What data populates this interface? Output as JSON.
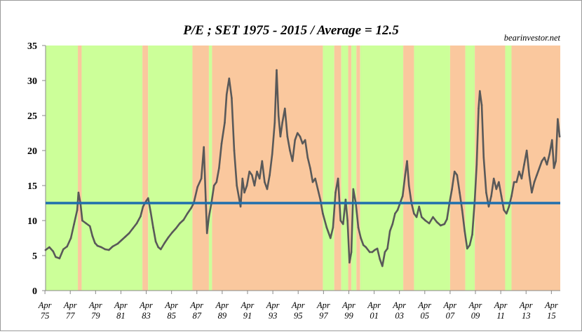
{
  "chart_data": {
    "type": "line",
    "title": "P/E ; SET 1975 - 2015 / Average  = 12.5",
    "source": "bearinvestor.net",
    "xlabel": "",
    "ylabel": "",
    "xlim": [
      1975.3,
      2015.95
    ],
    "ylim": [
      0,
      35
    ],
    "y_ticks": [
      0,
      5,
      10,
      15,
      20,
      25,
      30,
      35
    ],
    "x_ticks": [
      {
        "t": 1975.25,
        "month": "Apr",
        "year": "75"
      },
      {
        "t": 1977.25,
        "month": "Apr",
        "year": "77"
      },
      {
        "t": 1979.25,
        "month": "Apr",
        "year": "79"
      },
      {
        "t": 1981.25,
        "month": "Apr",
        "year": "81"
      },
      {
        "t": 1983.25,
        "month": "Apr",
        "year": "83"
      },
      {
        "t": 1985.25,
        "month": "Apr",
        "year": "85"
      },
      {
        "t": 1987.25,
        "month": "Apr",
        "year": "87"
      },
      {
        "t": 1989.25,
        "month": "Apr",
        "year": "89"
      },
      {
        "t": 1991.25,
        "month": "Apr",
        "year": "91"
      },
      {
        "t": 1993.25,
        "month": "Apr",
        "year": "93"
      },
      {
        "t": 1995.25,
        "month": "Apr",
        "year": "95"
      },
      {
        "t": 1997.25,
        "month": "Apr",
        "year": "97"
      },
      {
        "t": 1999.25,
        "month": "Apr",
        "year": "99"
      },
      {
        "t": 2001.25,
        "month": "Apr",
        "year": "01"
      },
      {
        "t": 2003.25,
        "month": "Apr",
        "year": "03"
      },
      {
        "t": 2005.25,
        "month": "Apr",
        "year": "05"
      },
      {
        "t": 2007.25,
        "month": "Apr",
        "year": "07"
      },
      {
        "t": 2009.25,
        "month": "Apr",
        "year": "09"
      },
      {
        "t": 2011.25,
        "month": "Apr",
        "year": "11"
      },
      {
        "t": 2013.25,
        "month": "Apr",
        "year": "13"
      },
      {
        "t": 2015.25,
        "month": "Apr",
        "year": "15"
      }
    ],
    "average": 12.5,
    "regimes": [
      {
        "start": 1975.3,
        "end": 1977.85,
        "phase": "green"
      },
      {
        "start": 1977.85,
        "end": 1978.15,
        "phase": "orange"
      },
      {
        "start": 1978.15,
        "end": 1982.95,
        "phase": "green"
      },
      {
        "start": 1982.95,
        "end": 1983.4,
        "phase": "orange"
      },
      {
        "start": 1983.4,
        "end": 1986.9,
        "phase": "green"
      },
      {
        "start": 1986.9,
        "end": 1988.2,
        "phase": "orange"
      },
      {
        "start": 1988.2,
        "end": 1988.45,
        "phase": "green"
      },
      {
        "start": 1988.45,
        "end": 1997.2,
        "phase": "orange"
      },
      {
        "start": 1997.2,
        "end": 1998.1,
        "phase": "green"
      },
      {
        "start": 1998.1,
        "end": 1998.65,
        "phase": "orange"
      },
      {
        "start": 1998.65,
        "end": 1999.2,
        "phase": "green"
      },
      {
        "start": 1999.2,
        "end": 1999.45,
        "phase": "orange"
      },
      {
        "start": 1999.45,
        "end": 1999.85,
        "phase": "green"
      },
      {
        "start": 1999.85,
        "end": 2000.15,
        "phase": "orange"
      },
      {
        "start": 2000.15,
        "end": 2003.55,
        "phase": "green"
      },
      {
        "start": 2003.55,
        "end": 2004.4,
        "phase": "orange"
      },
      {
        "start": 2004.4,
        "end": 2007.25,
        "phase": "green"
      },
      {
        "start": 2007.25,
        "end": 2008.45,
        "phase": "orange"
      },
      {
        "start": 2008.45,
        "end": 2009.2,
        "phase": "green"
      },
      {
        "start": 2009.2,
        "end": 2011.6,
        "phase": "orange"
      },
      {
        "start": 2011.6,
        "end": 2012.1,
        "phase": "green"
      },
      {
        "start": 2012.1,
        "end": 2015.95,
        "phase": "orange"
      }
    ],
    "series": [
      {
        "name": "P/E SET",
        "color": "#595959",
        "x": [
          1975.3,
          1975.6,
          1975.9,
          1976.1,
          1976.4,
          1976.7,
          1977.0,
          1977.3,
          1977.55,
          1977.8,
          1977.9,
          1978.05,
          1978.2,
          1978.5,
          1978.8,
          1979.0,
          1979.2,
          1979.4,
          1979.7,
          1980.0,
          1980.3,
          1980.6,
          1981.0,
          1981.3,
          1981.6,
          1981.9,
          1982.2,
          1982.5,
          1982.8,
          1983.0,
          1983.25,
          1983.4,
          1983.6,
          1983.8,
          1984.0,
          1984.2,
          1984.4,
          1984.7,
          1985.0,
          1985.3,
          1985.6,
          1985.9,
          1986.2,
          1986.5,
          1986.8,
          1987.0,
          1987.3,
          1987.6,
          1987.8,
          1987.95,
          1988.05,
          1988.2,
          1988.4,
          1988.6,
          1988.8,
          1989.0,
          1989.2,
          1989.45,
          1989.6,
          1989.8,
          1990.0,
          1990.2,
          1990.4,
          1990.6,
          1990.7,
          1990.85,
          1991.0,
          1991.2,
          1991.4,
          1991.6,
          1991.8,
          1992.0,
          1992.2,
          1992.4,
          1992.6,
          1992.8,
          1993.0,
          1993.2,
          1993.4,
          1993.55,
          1993.7,
          1993.85,
          1994.0,
          1994.2,
          1994.4,
          1994.6,
          1994.8,
          1995.0,
          1995.2,
          1995.4,
          1995.6,
          1995.8,
          1996.0,
          1996.2,
          1996.4,
          1996.6,
          1996.8,
          1997.0,
          1997.2,
          1997.5,
          1997.8,
          1998.0,
          1998.2,
          1998.4,
          1998.6,
          1998.8,
          1999.0,
          1999.15,
          1999.3,
          1999.45,
          1999.6,
          1999.8,
          2000.0,
          2000.2,
          2000.4,
          2000.6,
          2000.9,
          2001.1,
          2001.3,
          2001.5,
          2001.7,
          2001.9,
          2002.1,
          2002.3,
          2002.5,
          2002.7,
          2002.9,
          2003.1,
          2003.3,
          2003.5,
          2003.7,
          2003.85,
          2004.0,
          2004.2,
          2004.4,
          2004.6,
          2004.8,
          2005.0,
          2005.3,
          2005.6,
          2005.9,
          2006.2,
          2006.5,
          2006.8,
          2007.0,
          2007.2,
          2007.4,
          2007.6,
          2007.8,
          2008.0,
          2008.2,
          2008.4,
          2008.6,
          2008.8,
          2009.0,
          2009.2,
          2009.35,
          2009.5,
          2009.6,
          2009.75,
          2009.9,
          2010.1,
          2010.3,
          2010.5,
          2010.7,
          2010.9,
          2011.1,
          2011.3,
          2011.5,
          2011.7,
          2011.9,
          2012.1,
          2012.3,
          2012.5,
          2012.7,
          2012.9,
          2013.1,
          2013.3,
          2013.5,
          2013.7,
          2013.9,
          2014.1,
          2014.3,
          2014.5,
          2014.7,
          2014.9,
          2015.1,
          2015.3,
          2015.45,
          2015.6,
          2015.75,
          2015.9
        ],
        "values": [
          5.8,
          6.2,
          5.6,
          4.8,
          4.6,
          5.9,
          6.3,
          7.5,
          9.5,
          11.5,
          14.0,
          12.5,
          10.0,
          9.6,
          9.2,
          7.8,
          6.8,
          6.4,
          6.2,
          5.9,
          5.8,
          6.3,
          6.7,
          7.2,
          7.7,
          8.2,
          8.9,
          9.6,
          10.6,
          12.0,
          12.8,
          13.2,
          11.2,
          9.0,
          7.0,
          6.2,
          5.9,
          6.8,
          7.6,
          8.3,
          8.9,
          9.6,
          10.1,
          11.0,
          11.8,
          12.5,
          14.8,
          16.0,
          20.5,
          13.0,
          8.2,
          10.5,
          12.5,
          15.0,
          15.5,
          17.5,
          21.0,
          24.0,
          28.0,
          30.3,
          27.5,
          20.0,
          15.0,
          13.0,
          12.0,
          16.0,
          14.0,
          15.0,
          17.0,
          16.5,
          15.0,
          17.0,
          16.0,
          18.5,
          15.5,
          14.5,
          16.5,
          19.5,
          24.0,
          31.5,
          25.0,
          22.0,
          24.0,
          26.0,
          22.0,
          20.0,
          18.5,
          21.5,
          22.5,
          22.0,
          21.0,
          21.5,
          19.0,
          17.5,
          15.5,
          16.0,
          14.5,
          13.0,
          11.0,
          9.0,
          7.5,
          9.0,
          14.0,
          16.0,
          10.0,
          9.5,
          13.0,
          10.0,
          4.0,
          5.5,
          14.5,
          12.5,
          9.0,
          7.5,
          6.5,
          6.2,
          5.5,
          5.5,
          5.8,
          6.0,
          4.5,
          3.5,
          5.5,
          6.0,
          8.5,
          9.5,
          11.0,
          11.5,
          12.5,
          13.5,
          16.5,
          18.5,
          15.0,
          12.5,
          11.0,
          10.5,
          12.0,
          10.5,
          10.0,
          9.6,
          10.5,
          9.8,
          9.3,
          9.5,
          10.2,
          12.5,
          14.5,
          17.0,
          16.5,
          14.0,
          11.5,
          8.5,
          6.0,
          6.5,
          8.0,
          13.0,
          18.0,
          26.0,
          28.5,
          26.5,
          19.0,
          14.0,
          12.0,
          13.5,
          16.0,
          14.5,
          15.5,
          13.5,
          11.5,
          11.0,
          12.0,
          13.5,
          15.5,
          15.5,
          17.0,
          16.0,
          18.0,
          20.0,
          16.5,
          14.0,
          15.5,
          16.5,
          17.5,
          18.5,
          19.0,
          18.0,
          19.5,
          21.5,
          17.5,
          18.5,
          24.5,
          22.0
        ]
      }
    ]
  }
}
